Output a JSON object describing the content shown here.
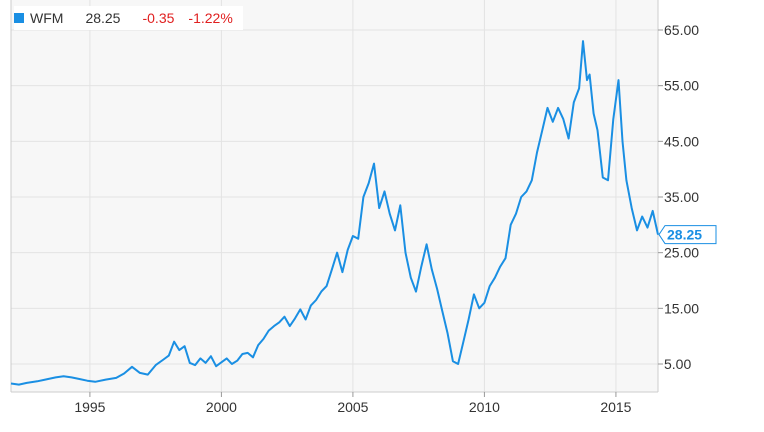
{
  "legend": {
    "symbol": "WFM",
    "last": "28.25",
    "change": "-0.35",
    "change_pct": "-1.22%"
  },
  "colors": {
    "series": "#1a8fe3",
    "negative": "#e02020",
    "grid": "#e3e3e3",
    "plot_bg": "#f7f7f7",
    "text": "#333333"
  },
  "chart_data": {
    "type": "line",
    "grid": true,
    "legend_position": "top-left",
    "xlim": [
      1992.0,
      2016.6
    ],
    "ylim": [
      0,
      70
    ],
    "x_ticks": [
      1995,
      2000,
      2005,
      2010,
      2015
    ],
    "x_tick_labels": [
      "1995",
      "2000",
      "2005",
      "2010",
      "2015"
    ],
    "y_ticks": [
      5,
      15,
      25,
      35,
      45,
      55,
      65
    ],
    "y_tick_labels": [
      "5.00",
      "15.00",
      "25.00",
      "35.00",
      "45.00",
      "55.00",
      "65.00"
    ],
    "last_value_label": "28.25",
    "series": [
      {
        "name": "WFM",
        "x": [
          1992.0,
          1992.3,
          1992.6,
          1993.0,
          1993.3,
          1993.7,
          1994.0,
          1994.3,
          1994.6,
          1994.9,
          1995.2,
          1995.6,
          1996.0,
          1996.3,
          1996.6,
          1996.9,
          1997.2,
          1997.5,
          1997.8,
          1998.0,
          1998.2,
          1998.4,
          1998.6,
          1998.8,
          1999.0,
          1999.2,
          1999.4,
          1999.6,
          1999.8,
          2000.0,
          2000.2,
          2000.4,
          2000.6,
          2000.8,
          2001.0,
          2001.2,
          2001.4,
          2001.6,
          2001.8,
          2002.0,
          2002.2,
          2002.4,
          2002.6,
          2002.8,
          2003.0,
          2003.2,
          2003.4,
          2003.6,
          2003.8,
          2004.0,
          2004.2,
          2004.4,
          2004.6,
          2004.8,
          2005.0,
          2005.2,
          2005.4,
          2005.6,
          2005.8,
          2006.0,
          2006.2,
          2006.4,
          2006.6,
          2006.8,
          2007.0,
          2007.2,
          2007.4,
          2007.6,
          2007.8,
          2008.0,
          2008.2,
          2008.4,
          2008.6,
          2008.8,
          2009.0,
          2009.2,
          2009.4,
          2009.6,
          2009.8,
          2010.0,
          2010.2,
          2010.4,
          2010.6,
          2010.8,
          2011.0,
          2011.2,
          2011.4,
          2011.6,
          2011.8,
          2012.0,
          2012.2,
          2012.4,
          2012.6,
          2012.8,
          2013.0,
          2013.2,
          2013.4,
          2013.6,
          2013.75,
          2013.9,
          2014.0,
          2014.15,
          2014.3,
          2014.5,
          2014.7,
          2014.9,
          2015.1,
          2015.25,
          2015.4,
          2015.6,
          2015.8,
          2016.0,
          2016.2,
          2016.4,
          2016.6
        ],
        "y": [
          1.5,
          1.3,
          1.6,
          1.9,
          2.2,
          2.6,
          2.8,
          2.6,
          2.3,
          2.0,
          1.8,
          2.2,
          2.5,
          3.3,
          4.5,
          3.4,
          3.1,
          4.8,
          5.8,
          6.5,
          9.0,
          7.5,
          8.2,
          5.2,
          4.8,
          6.0,
          5.2,
          6.4,
          4.6,
          5.3,
          6.0,
          5.0,
          5.6,
          6.8,
          7.0,
          6.2,
          8.4,
          9.5,
          11.0,
          11.8,
          12.5,
          13.5,
          11.8,
          13.2,
          14.8,
          13.0,
          15.5,
          16.5,
          18.0,
          19.0,
          22.0,
          25.0,
          21.5,
          25.5,
          28.0,
          27.5,
          35.0,
          37.5,
          41.0,
          33.0,
          36.0,
          32.0,
          29.0,
          33.5,
          25.0,
          20.5,
          18.0,
          22.5,
          26.5,
          22.0,
          18.5,
          14.5,
          10.5,
          5.5,
          5.0,
          9.0,
          13.0,
          17.5,
          15.0,
          16.0,
          19.0,
          20.5,
          22.5,
          24.0,
          30.0,
          32.0,
          35.0,
          36.0,
          38.0,
          43.0,
          47.0,
          51.0,
          48.5,
          51.0,
          49.0,
          45.5,
          52.0,
          54.5,
          63.0,
          56.0,
          57.0,
          50.0,
          47.0,
          38.5,
          38.0,
          49.0,
          56.0,
          45.0,
          38.0,
          33.0,
          29.0,
          31.5,
          29.5,
          32.5,
          28.25
        ]
      }
    ]
  }
}
